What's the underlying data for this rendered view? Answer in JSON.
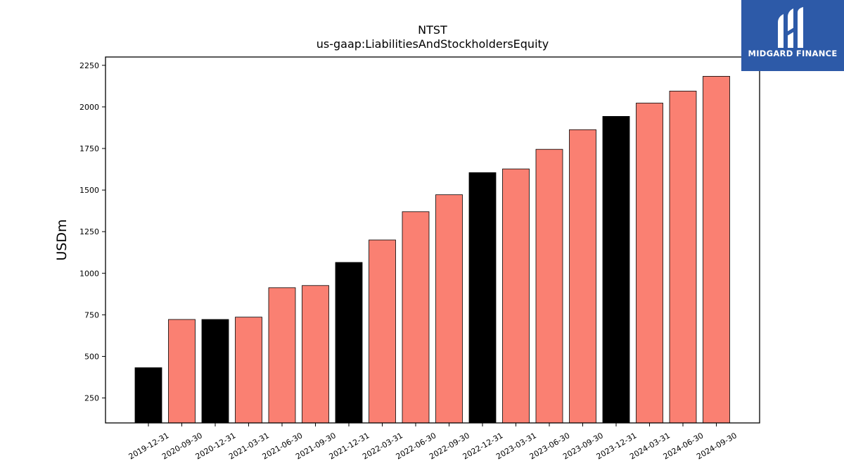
{
  "logo": {
    "text": "MIDGARD FINANCE",
    "icon": "midgard-logo-icon",
    "background": "#2d5aa8"
  },
  "chart_data": {
    "type": "bar",
    "title": "NTST",
    "subtitle": "us-gaap:LiabilitiesAndStockholdersEquity",
    "xlabel": "",
    "ylabel": "USDm",
    "ylim": [
      100,
      2300
    ],
    "yticks": [
      250,
      500,
      750,
      1000,
      1250,
      1500,
      1750,
      2000,
      2250
    ],
    "categories": [
      "2019-12-31",
      "2020-09-30",
      "2020-12-31",
      "2021-03-31",
      "2021-06-30",
      "2021-09-30",
      "2021-12-31",
      "2022-03-31",
      "2022-06-30",
      "2022-09-30",
      "2022-12-31",
      "2023-03-31",
      "2023-06-30",
      "2023-09-30",
      "2023-12-31",
      "2024-03-31",
      "2024-06-30",
      "2024-09-30"
    ],
    "values": [
      432,
      722,
      722,
      736,
      913,
      926,
      1065,
      1200,
      1370,
      1472,
      1605,
      1627,
      1745,
      1863,
      1943,
      2023,
      2095,
      2184
    ],
    "bar_colors": [
      "#000000",
      "#fa8072",
      "#000000",
      "#fa8072",
      "#fa8072",
      "#fa8072",
      "#000000",
      "#fa8072",
      "#fa8072",
      "#fa8072",
      "#000000",
      "#fa8072",
      "#fa8072",
      "#fa8072",
      "#000000",
      "#fa8072",
      "#fa8072",
      "#fa8072"
    ],
    "grid": false,
    "legend": "none"
  }
}
